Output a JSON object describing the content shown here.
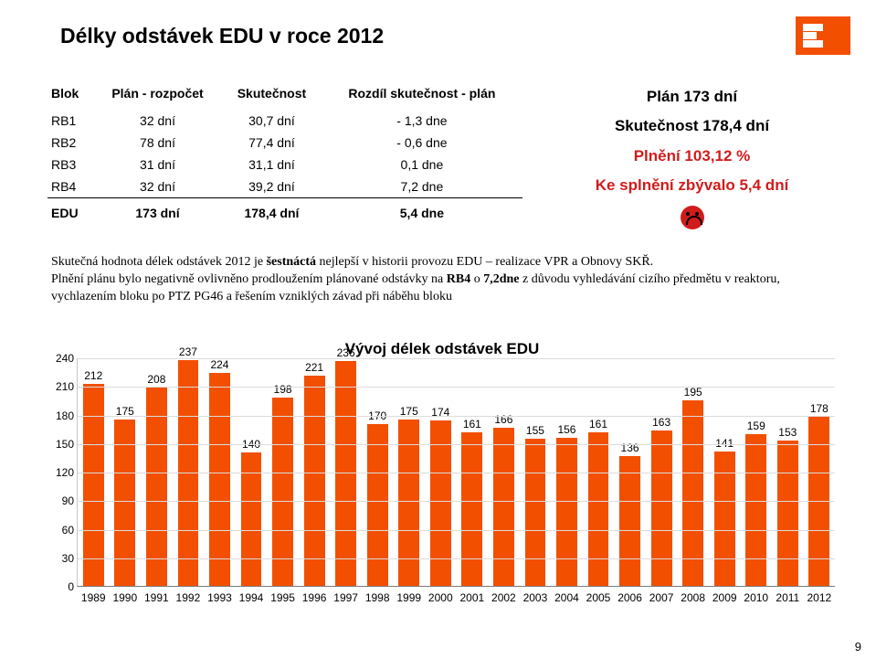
{
  "title": "Délky odstávek EDU v roce 2012",
  "table": {
    "headers": [
      "Blok",
      "Plán - rozpočet",
      "Skutečnost",
      "Rozdíl skutečnost - plán"
    ],
    "rows": [
      [
        "RB1",
        "32 dní",
        "30,7 dní",
        "- 1,3 dne"
      ],
      [
        "RB2",
        "78 dní",
        "77,4 dní",
        "- 0,6 dne"
      ],
      [
        "RB3",
        "31 dní",
        "31,1 dní",
        "0,1 dne"
      ],
      [
        "RB4",
        "32 dní",
        "39,2 dní",
        "7,2 dne"
      ]
    ],
    "total": [
      "EDU",
      "173 dní",
      "178,4 dní",
      "5,4 dne"
    ]
  },
  "summary": {
    "l1": "Plán 173 dní",
    "l2": "Skutečnost 178,4 dní",
    "l3": "Plnění 103,12 %",
    "l4": "Ke splnění zbývalo 5,4 dní"
  },
  "paragraph": "Skutečná hodnota délek odstávek 2012 je šestnáctá nejlepší v historii provozu EDU – realizace VPR a Obnovy SKŘ.\nPlnění plánu bylo negativně ovlivněno prodloužením plánované odstávky na RB4 o 7,2dne z důvodu vyhledávání cizího předmětu v reaktoru, vychlazením bloku po PTZ PG46  a řešením vzniklých závad při náběhu bloku",
  "chart": {
    "type": "bar",
    "title": "Vývoj délek odstávek EDU",
    "categories": [
      "1989",
      "1990",
      "1991",
      "1992",
      "1993",
      "1994",
      "1995",
      "1996",
      "1997",
      "1998",
      "1999",
      "2000",
      "2001",
      "2002",
      "2003",
      "2004",
      "2005",
      "2006",
      "2007",
      "2008",
      "2009",
      "2010",
      "2011",
      "2012"
    ],
    "values": [
      212,
      175,
      208,
      237,
      224,
      140,
      198,
      221,
      236,
      170,
      175,
      174,
      161,
      166,
      155,
      156,
      161,
      136,
      163,
      195,
      141,
      159,
      153,
      178
    ],
    "bar_color": "#f24f00",
    "value_label_color": "#000000",
    "value_label_fontsize": 12,
    "ylim": [
      0,
      240
    ],
    "ytick_step": 30,
    "background_color": "#ffffff",
    "grid_color": "#dcdcdc",
    "axis_color": "#7a7a7a",
    "bar_width_ratio": 0.66,
    "title_fontsize": 17,
    "title_fontweight": "bold",
    "xlabel_fontsize": 12,
    "ylabel_fontsize": 12
  },
  "page_num": "9"
}
